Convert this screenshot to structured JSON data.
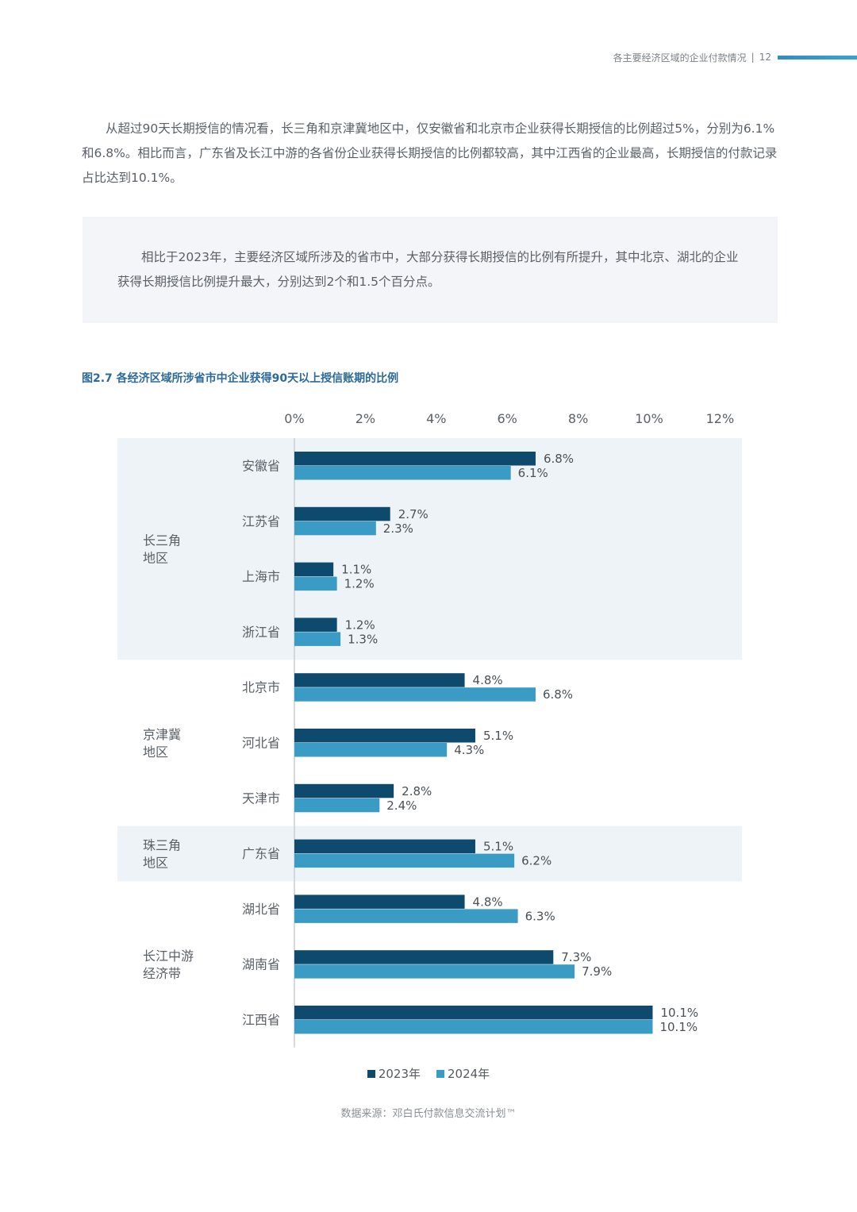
{
  "header": {
    "title": "各主要经济区域的企业付款情况",
    "separator": "|",
    "page": "12"
  },
  "paragraph": "从超过90天长期授信的情况看，长三角和京津冀地区中，仅安徽省和北京市企业获得长期授信的比例超过5%，分别为6.1%和6.8%。相比而言，广东省及长江中游的各省份企业获得长期授信的比例都较高，其中江西省的企业最高，长期授信的付款记录占比达到10.1%。",
  "callout": "相比于2023年，主要经济区域所涉及的省市中，大部分获得长期授信的比例有所提升，其中北京、湖北的企业获得长期授信比例提升最大，分别达到2个和1.5个百分点。",
  "figure_title": "图2.7 各经济区域所涉省市中企业获得90天以上授信账期的比例",
  "colors": {
    "series_2023": "#0d4a6e",
    "series_2024": "#3a9cc4",
    "region_band": "#eef3f8",
    "axis": "#c9ced3"
  },
  "chart_data": {
    "type": "bar",
    "orientation": "horizontal",
    "x_ticks": [
      "0%",
      "2%",
      "4%",
      "6%",
      "8%",
      "10%",
      "12%"
    ],
    "xlim": [
      0,
      12
    ],
    "tick_position": "top",
    "regions": [
      {
        "name": "长三角\n地区",
        "categories": [
          "安徽省",
          "江苏省",
          "上海市",
          "浙江省"
        ],
        "shaded": true
      },
      {
        "name": "京津冀\n地区",
        "categories": [
          "北京市",
          "河北省",
          "天津市"
        ],
        "shaded": false
      },
      {
        "name": "珠三角\n地区",
        "categories": [
          "广东省"
        ],
        "shaded": true
      },
      {
        "name": "长江中游\n经济带",
        "categories": [
          "湖北省",
          "湖南省",
          "江西省"
        ],
        "shaded": false
      }
    ],
    "categories": [
      "安徽省",
      "江苏省",
      "上海市",
      "浙江省",
      "北京市",
      "河北省",
      "天津市",
      "广东省",
      "湖北省",
      "湖南省",
      "江西省"
    ],
    "series": [
      {
        "name": "2023年",
        "values": [
          6.8,
          2.7,
          1.1,
          1.2,
          4.8,
          5.1,
          2.8,
          5.1,
          4.8,
          7.3,
          10.1
        ]
      },
      {
        "name": "2024年",
        "values": [
          6.1,
          2.3,
          1.2,
          1.3,
          6.8,
          4.3,
          2.4,
          6.2,
          6.3,
          7.9,
          10.1
        ]
      }
    ],
    "value_labels_2023": [
      "6.8%",
      "2.7%",
      "1.1%",
      "1.2%",
      "4.8%",
      "5.1%",
      "2.8%",
      "5.1%",
      "4.8%",
      "7.3%",
      "10.1%"
    ],
    "value_labels_2024": [
      "6.1%",
      "2.3%",
      "1.2%",
      "1.3%",
      "6.8%",
      "4.3%",
      "2.4%",
      "6.2%",
      "6.3%",
      "7.9%",
      "10.1%"
    ],
    "legend_position": "bottom-center"
  },
  "source": "数据来源：邓白氏付款信息交流计划™"
}
